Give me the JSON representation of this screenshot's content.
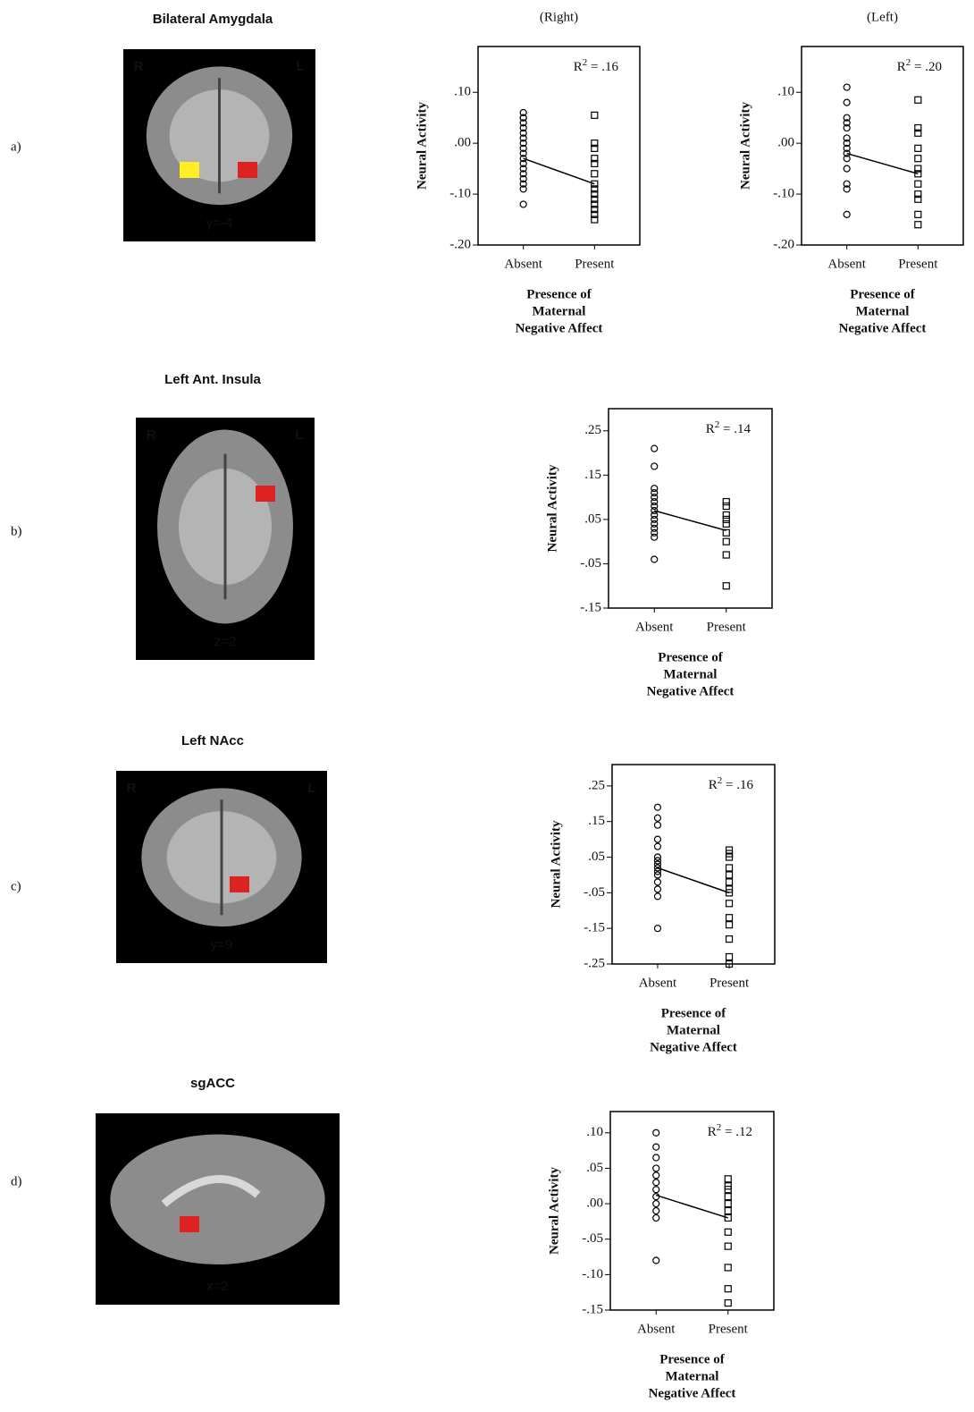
{
  "panels": [
    {
      "label": "a)",
      "title": "Bilateral Amygdala",
      "orient": [
        "R",
        "L"
      ],
      "slice": "y=-4"
    },
    {
      "label": "b)",
      "title": "Left Ant. Insula",
      "orient": [
        "R",
        "L"
      ],
      "slice": "z=2"
    },
    {
      "label": "c)",
      "title": "Left NAcc",
      "orient": [
        "R",
        "L"
      ],
      "slice": "y=9"
    },
    {
      "label": "d)",
      "title": "sgACC",
      "slice": "x=2"
    }
  ],
  "chart_data": [
    {
      "type": "scatter",
      "title": "(Right)",
      "ylabel": "Neural Activity",
      "xlabel": [
        "Presence of",
        "Maternal",
        "Negative Affect"
      ],
      "annotation": {
        "base": "R",
        "sup": "2",
        "text": " = .16"
      },
      "categories": [
        "Absent",
        "Present"
      ],
      "ylim": [
        -0.2,
        0.19
      ],
      "yticks": [
        {
          "value": 0.1,
          "label": ".10"
        },
        {
          "value": 0,
          "label": ".00"
        },
        {
          "value": -0.1,
          "label": "-.10"
        },
        {
          "value": -0.2,
          "label": "-.20"
        }
      ],
      "series": [
        {
          "marker": "circle",
          "values": [
            0.06,
            0.05,
            0.05,
            0.04,
            0.03,
            0.02,
            0.01,
            0.0,
            -0.01,
            -0.02,
            -0.03,
            -0.04,
            -0.05,
            -0.06,
            -0.07,
            -0.08,
            -0.09,
            -0.12
          ]
        },
        {
          "marker": "square",
          "values": [
            0.055,
            0.0,
            -0.01,
            -0.03,
            -0.04,
            -0.06,
            -0.08,
            -0.09,
            -0.1,
            -0.11,
            -0.12,
            -0.13,
            -0.14,
            -0.15
          ]
        }
      ],
      "fit": [
        -0.03,
        -0.08
      ]
    },
    {
      "type": "scatter",
      "title": "(Left)",
      "ylabel": "Neural Activity",
      "xlabel": [
        "Presence of",
        "Maternal",
        "Negative Affect"
      ],
      "annotation": {
        "base": "R",
        "sup": "2",
        "text": " = .20"
      },
      "categories": [
        "Absent",
        "Present"
      ],
      "ylim": [
        -0.2,
        0.19
      ],
      "yticks": [
        {
          "value": 0.1,
          "label": ".10"
        },
        {
          "value": 0,
          "label": ".00"
        },
        {
          "value": -0.1,
          "label": "-.10"
        },
        {
          "value": -0.2,
          "label": "-.20"
        }
      ],
      "series": [
        {
          "marker": "circle",
          "values": [
            0.11,
            0.08,
            0.05,
            0.04,
            0.03,
            0.01,
            0.0,
            -0.01,
            -0.02,
            -0.03,
            -0.05,
            -0.08,
            -0.09,
            -0.14
          ]
        },
        {
          "marker": "square",
          "values": [
            0.085,
            0.03,
            0.02,
            -0.01,
            -0.03,
            -0.05,
            -0.06,
            -0.08,
            -0.1,
            -0.11,
            -0.14,
            -0.16
          ]
        }
      ],
      "fit": [
        -0.02,
        -0.06
      ]
    },
    {
      "type": "scatter",
      "ylabel": "Neural Activity",
      "xlabel": [
        "Presence of",
        "Maternal",
        "Negative Affect"
      ],
      "annotation": {
        "base": "R",
        "sup": "2",
        "text": " = .14"
      },
      "categories": [
        "Absent",
        "Present"
      ],
      "ylim": [
        -0.15,
        0.3
      ],
      "yticks": [
        {
          "value": 0.25,
          "label": ".25"
        },
        {
          "value": 0.15,
          "label": ".15"
        },
        {
          "value": 0.05,
          "label": ".05"
        },
        {
          "value": -0.05,
          "label": "-.05"
        },
        {
          "value": -0.15,
          "label": "-.15"
        }
      ],
      "series": [
        {
          "marker": "circle",
          "values": [
            0.21,
            0.17,
            0.12,
            0.11,
            0.1,
            0.09,
            0.08,
            0.07,
            0.06,
            0.05,
            0.04,
            0.03,
            0.02,
            0.01,
            -0.04
          ]
        },
        {
          "marker": "square",
          "values": [
            0.09,
            0.08,
            0.06,
            0.05,
            0.04,
            0.02,
            0.0,
            -0.03,
            -0.1
          ]
        }
      ],
      "fit": [
        0.07,
        0.025
      ]
    },
    {
      "type": "scatter",
      "ylabel": "Neural Activity",
      "xlabel": [
        "Presence of",
        "Maternal",
        "Negative Affect"
      ],
      "annotation": {
        "base": "R",
        "sup": "2",
        "text": " = .16"
      },
      "categories": [
        "Absent",
        "Present"
      ],
      "ylim": [
        -0.25,
        0.31
      ],
      "yticks": [
        {
          "value": 0.25,
          "label": ".25"
        },
        {
          "value": 0.15,
          "label": ".15"
        },
        {
          "value": 0.05,
          "label": ".05"
        },
        {
          "value": -0.05,
          "label": "-.05"
        },
        {
          "value": -0.15,
          "label": "-.15"
        },
        {
          "value": -0.25,
          "label": "-.25"
        }
      ],
      "series": [
        {
          "marker": "circle",
          "values": [
            0.19,
            0.16,
            0.14,
            0.1,
            0.08,
            0.05,
            0.04,
            0.03,
            0.02,
            0.01,
            0.0,
            -0.02,
            -0.04,
            -0.06,
            -0.15
          ]
        },
        {
          "marker": "square",
          "values": [
            0.07,
            0.06,
            0.05,
            0.02,
            0.0,
            -0.02,
            -0.04,
            -0.05,
            -0.08,
            -0.12,
            -0.14,
            -0.18,
            -0.23,
            -0.25
          ]
        }
      ],
      "fit": [
        0.02,
        -0.05
      ]
    },
    {
      "type": "scatter",
      "ylabel": "Neural Activity",
      "xlabel": [
        "Presence of",
        "Maternal",
        "Negative Affect"
      ],
      "annotation": {
        "base": "R",
        "sup": "2",
        "text": " = .12"
      },
      "categories": [
        "Absent",
        "Present"
      ],
      "ylim": [
        -0.15,
        0.13
      ],
      "yticks": [
        {
          "value": 0.1,
          "label": ".10"
        },
        {
          "value": 0.05,
          "label": ".05"
        },
        {
          "value": 0,
          "label": ".00"
        },
        {
          "value": -0.05,
          "label": "-.05"
        },
        {
          "value": -0.1,
          "label": "-.10"
        },
        {
          "value": -0.15,
          "label": "-.15"
        }
      ],
      "series": [
        {
          "marker": "circle",
          "values": [
            0.1,
            0.08,
            0.065,
            0.05,
            0.04,
            0.03,
            0.02,
            0.01,
            0.0,
            -0.01,
            -0.02,
            -0.08
          ]
        },
        {
          "marker": "square",
          "values": [
            0.035,
            0.025,
            0.02,
            0.01,
            0.0,
            -0.01,
            -0.02,
            -0.04,
            -0.06,
            -0.09,
            -0.12,
            -0.14
          ]
        }
      ],
      "fit": [
        0.012,
        -0.02
      ]
    }
  ]
}
